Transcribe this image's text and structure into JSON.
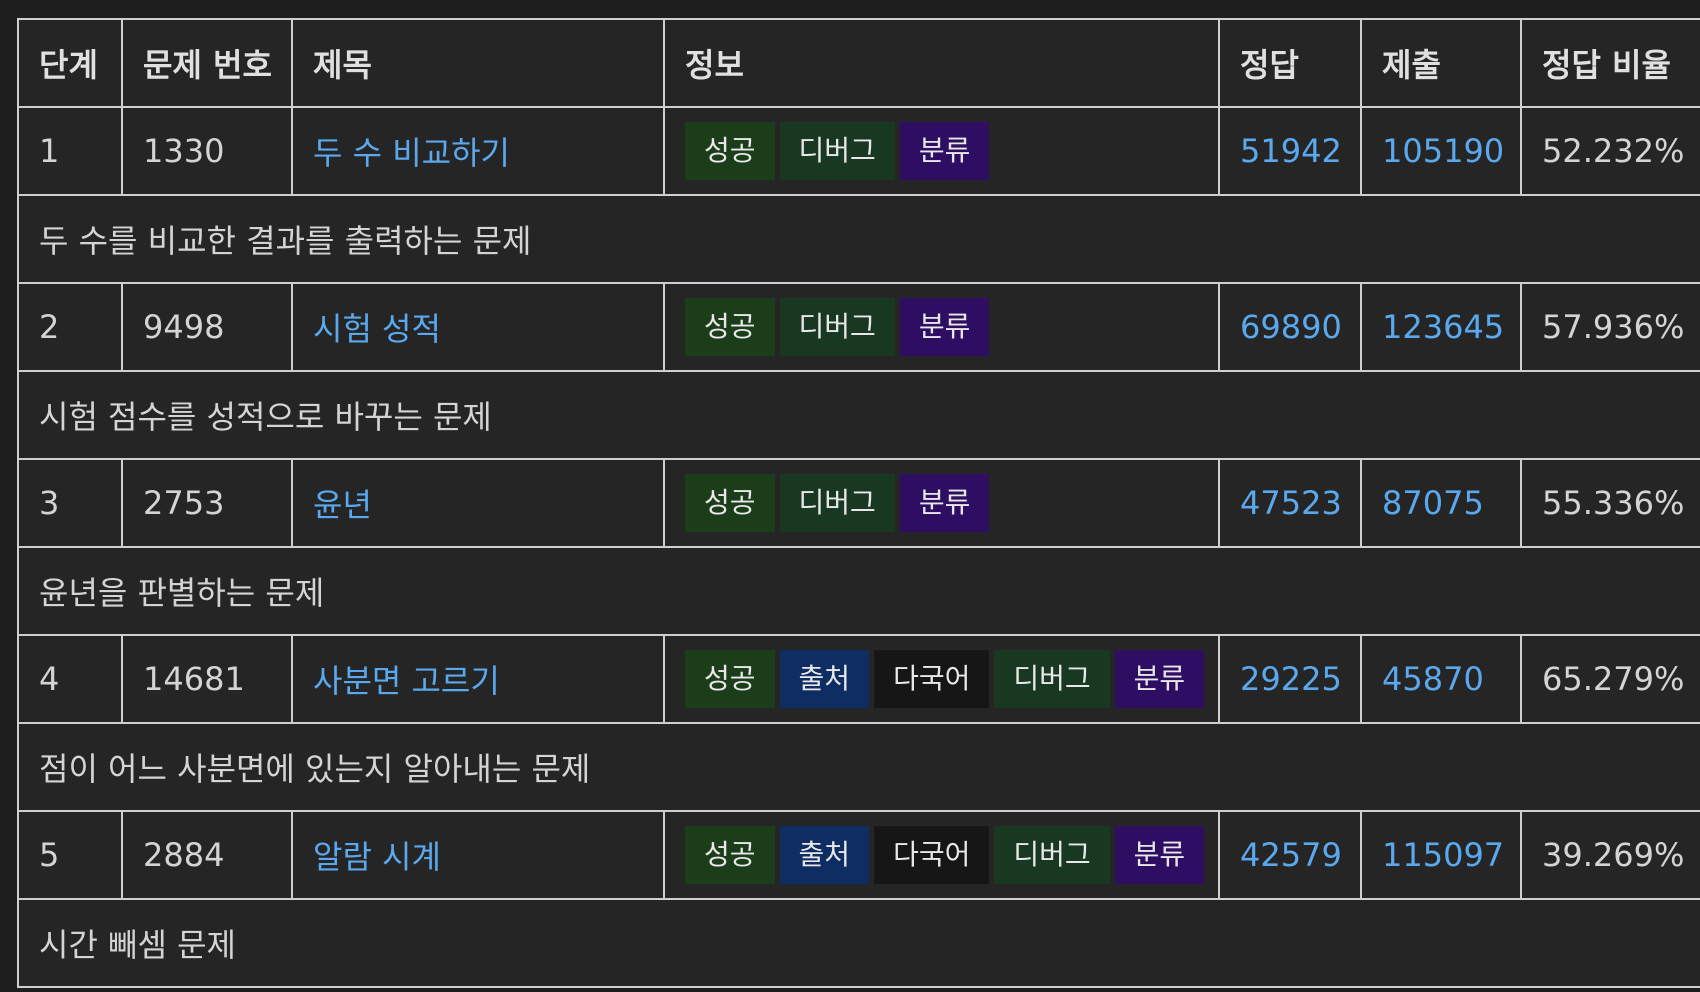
{
  "headers": {
    "step": "단계",
    "problem_number": "문제 번호",
    "title": "제목",
    "info": "정보",
    "accepted": "정답",
    "submissions": "제출",
    "ratio": "정답 비율"
  },
  "rows": [
    {
      "step": "1",
      "number": "1330",
      "title": "두 수 비교하기",
      "badges": [
        "성공",
        "디버그",
        "분류"
      ],
      "accepted": "51942",
      "submissions": "105190",
      "ratio": "52.232%",
      "description": "두 수를 비교한 결과를 출력하는 문제"
    },
    {
      "step": "2",
      "number": "9498",
      "title": "시험 성적",
      "badges": [
        "성공",
        "디버그",
        "분류"
      ],
      "accepted": "69890",
      "submissions": "123645",
      "ratio": "57.936%",
      "description": "시험 점수를 성적으로 바꾸는 문제"
    },
    {
      "step": "3",
      "number": "2753",
      "title": "윤년",
      "badges": [
        "성공",
        "디버그",
        "분류"
      ],
      "accepted": "47523",
      "submissions": "87075",
      "ratio": "55.336%",
      "description": "윤년을 판별하는 문제"
    },
    {
      "step": "4",
      "number": "14681",
      "title": "사분면 고르기",
      "badges": [
        "성공",
        "출처",
        "다국어",
        "디버그",
        "분류"
      ],
      "accepted": "29225",
      "submissions": "45870",
      "ratio": "65.279%",
      "description": "점이 어느 사분면에 있는지 알아내는 문제"
    },
    {
      "step": "5",
      "number": "2884",
      "title": "알람 시계",
      "badges": [
        "성공",
        "출처",
        "다국어",
        "디버그",
        "분류"
      ],
      "accepted": "42579",
      "submissions": "115097",
      "ratio": "39.269%",
      "description": "시간 빼셈 문제"
    }
  ],
  "badge_colors": {
    "성공": "#1c3d1a",
    "출처": "#0d2d63",
    "다국어": "#161616",
    "디버그": "#193821",
    "분류": "#2e0e62"
  },
  "link_color": "#5aa9ee"
}
